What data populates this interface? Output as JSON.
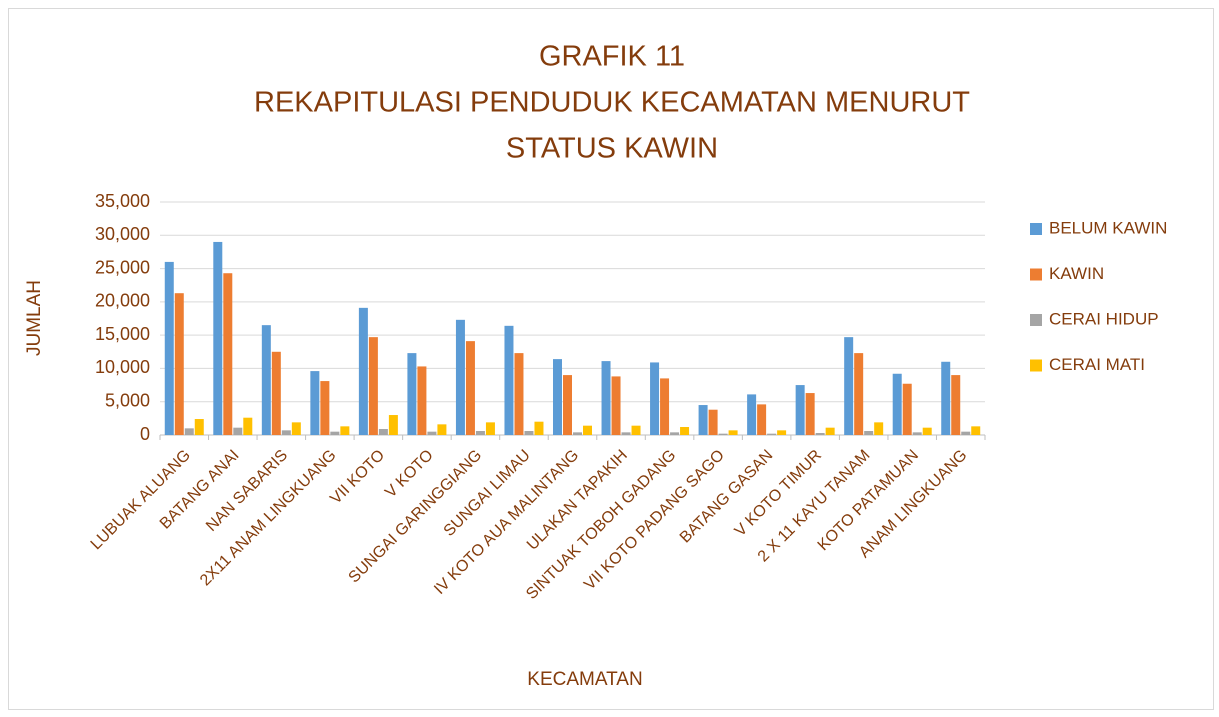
{
  "chart_data": {
    "type": "bar",
    "title": [
      "GRAFIK 11",
      "REKAPITULASI PENDUDUK KECAMATAN MENURUT",
      "STATUS KAWIN"
    ],
    "x_label": "KECAMATAN",
    "y_label": "JUMLAH",
    "categories": [
      "LUBUAK ALUANG",
      "BATANG ANAI",
      "NAN SABARIS",
      "2X11 ANAM LINGKUANG",
      "VII KOTO",
      "V KOTO",
      "SUNGAI GARINGGIANG",
      "SUNGAI LIMAU",
      "IV KOTO AUA MALINTANG",
      "ULAKAN TAPAKIH",
      "SINTUAK TOBOH GADANG",
      "VII KOTO PADANG SAGO",
      "BATANG GASAN",
      "V KOTO TIMUR",
      "2 X 11 KAYU TANAM",
      "KOTO PATAMUAN",
      "ANAM LINGKUANG"
    ],
    "series": [
      {
        "name": "BELUM KAWIN",
        "color": "#5b9bd5",
        "values": [
          26000,
          29000,
          16500,
          9600,
          19100,
          12300,
          17300,
          16400,
          11400,
          11100,
          10900,
          4500,
          6100,
          7500,
          14700,
          9200,
          11000
        ]
      },
      {
        "name": "KAWIN",
        "color": "#ed7d31",
        "values": [
          21300,
          24300,
          12500,
          8100,
          14700,
          10300,
          14100,
          12300,
          9000,
          8800,
          8500,
          3800,
          4600,
          6300,
          12300,
          7700,
          9000
        ]
      },
      {
        "name": "CERAI HIDUP",
        "color": "#a5a5a5",
        "values": [
          1000,
          1100,
          700,
          500,
          900,
          500,
          600,
          600,
          400,
          400,
          400,
          200,
          200,
          300,
          600,
          400,
          500
        ]
      },
      {
        "name": "CERAI MATI",
        "color": "#ffc000",
        "values": [
          2400,
          2600,
          1900,
          1300,
          3000,
          1600,
          1900,
          2000,
          1400,
          1400,
          1200,
          700,
          700,
          1100,
          1900,
          1100,
          1300
        ]
      }
    ],
    "ylim": [
      0,
      35000
    ],
    "yticks": [
      0,
      {
        "value": 5000,
        "label": "5,000"
      },
      {
        "value": 10000,
        "label": "10,000"
      },
      {
        "value": 15000,
        "label": "15,000"
      },
      {
        "value": 20000,
        "label": "20,000"
      },
      {
        "value": 25000,
        "label": "25,000"
      },
      {
        "value": 30000,
        "label": "30,000"
      },
      {
        "value": 35000,
        "label": "35,000"
      }
    ],
    "grid": true,
    "legend": "right"
  }
}
